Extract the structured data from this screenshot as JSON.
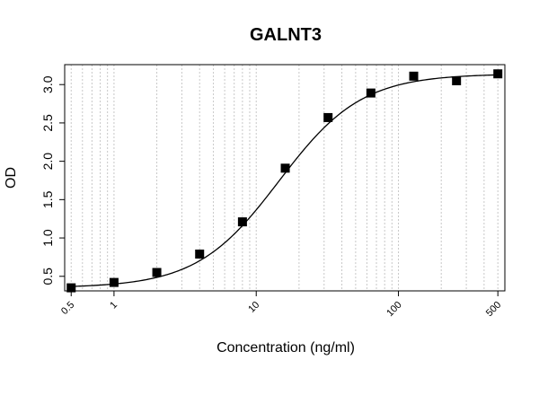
{
  "chart_data": {
    "type": "scatter",
    "title": "GALNT3",
    "xlabel": "Concentration (ng/ml)",
    "ylabel": "OD",
    "x_scale": "log",
    "xlim": [
      0.45,
      560
    ],
    "ylim": [
      0.31,
      3.26
    ],
    "x_ticks": [
      0.5,
      1,
      10,
      100,
      500
    ],
    "x_tick_labels": [
      "0.5",
      "1",
      "10",
      "100",
      "500"
    ],
    "y_ticks": [
      0.5,
      1.0,
      1.5,
      2.0,
      2.5,
      3.0
    ],
    "y_tick_labels": [
      "0.5",
      "1.0",
      "1.5",
      "2.0",
      "2.5",
      "3.0"
    ],
    "grid": "vertical dotted, log minor",
    "legend": "none",
    "series": [
      {
        "marker": "square",
        "color": "#000000",
        "x": [
          0.5,
          1,
          2,
          4,
          8,
          16,
          32,
          64,
          128,
          256,
          500
        ],
        "y": [
          0.35,
          0.42,
          0.55,
          0.79,
          1.21,
          1.91,
          2.57,
          2.89,
          3.11,
          3.05,
          3.14
        ]
      }
    ],
    "fit_curve": {
      "type": "4PL",
      "bottom": 0.35,
      "top": 3.14,
      "ec50": 14.5,
      "hill": 1.5
    }
  }
}
